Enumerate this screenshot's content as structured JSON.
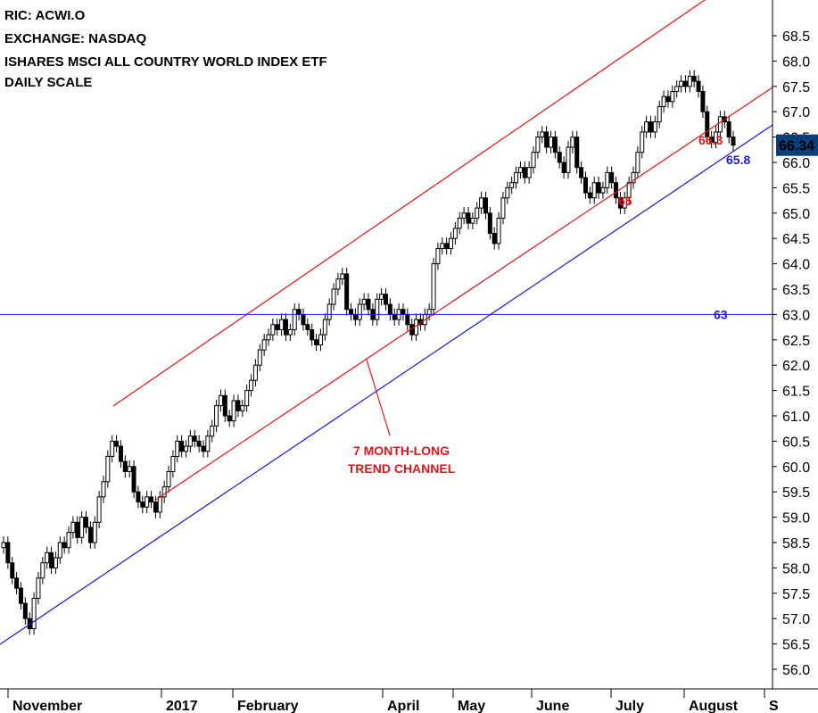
{
  "header": {
    "line1": "RIC: ACWI.O",
    "line2": "EXCHANGE: NASDAQ",
    "line3": "ISHARES MSCI ALL COUNTRY WORLD INDEX ETF",
    "line4": "DAILY SCALE"
  },
  "colors": {
    "channel": "#e3141b",
    "support": "#1a1ad6",
    "price_box": "#0b3f7a",
    "candle": "#000000"
  },
  "chart_data": {
    "type": "candlestick",
    "yaxis": {
      "ticks": [
        "56.0",
        "56.5",
        "57.0",
        "57.5",
        "58.0",
        "58.5",
        "59.0",
        "59.5",
        "60.0",
        "60.5",
        "61.0",
        "61.5",
        "62.0",
        "62.5",
        "63.0",
        "63.5",
        "64.0",
        "64.5",
        "65.0",
        "65.5",
        "66.0",
        "66.5",
        "67.0",
        "67.5",
        "68.0",
        "68.5"
      ],
      "range": [
        55.7,
        68.9
      ]
    },
    "xaxis": {
      "labels": [
        "November",
        "2017",
        "February",
        "April",
        "May",
        "June",
        "July",
        "August",
        "S"
      ]
    },
    "last_price": "66.34",
    "annotations": {
      "horizontal_level": "63",
      "channel_low_1": "65",
      "channel_low_2": "66.3",
      "support_level": "65.8",
      "note_line1": "7 MONTH-LONG",
      "note_line2": "TREND CHANNEL"
    },
    "closes": [
      58.5,
      58.1,
      57.8,
      57.6,
      57.3,
      57.0,
      56.8,
      57.4,
      57.8,
      58.1,
      58.3,
      58.0,
      58.2,
      58.5,
      58.4,
      58.7,
      58.9,
      58.6,
      59.0,
      58.8,
      58.5,
      58.9,
      59.4,
      59.7,
      60.2,
      60.5,
      60.4,
      60.1,
      59.9,
      60.0,
      59.5,
      59.3,
      59.2,
      59.4,
      59.3,
      59.1,
      59.4,
      59.6,
      59.9,
      60.2,
      60.5,
      60.3,
      60.4,
      60.6,
      60.5,
      60.4,
      60.3,
      60.6,
      60.8,
      61.2,
      61.4,
      61.0,
      60.9,
      61.3,
      61.1,
      61.2,
      61.5,
      61.7,
      62.0,
      62.3,
      62.5,
      62.6,
      62.8,
      62.7,
      62.9,
      62.6,
      62.7,
      63.1,
      63.0,
      62.8,
      62.7,
      62.5,
      62.4,
      62.6,
      62.9,
      63.2,
      63.5,
      63.7,
      63.8,
      63.1,
      63.0,
      62.9,
      63.2,
      63.3,
      63.1,
      62.9,
      63.3,
      63.4,
      63.2,
      63.0,
      62.9,
      63.1,
      63.0,
      62.8,
      62.6,
      62.9,
      62.8,
      63.0,
      63.1,
      64.0,
      64.3,
      64.4,
      64.3,
      64.5,
      64.7,
      64.9,
      65.0,
      64.8,
      64.9,
      65.1,
      65.3,
      65.0,
      64.6,
      64.4,
      64.9,
      65.3,
      65.5,
      65.6,
      65.8,
      65.9,
      65.7,
      65.9,
      66.2,
      66.5,
      66.6,
      66.3,
      66.5,
      66.2,
      66.0,
      65.8,
      66.3,
      66.5,
      65.9,
      65.7,
      65.4,
      65.3,
      65.6,
      65.4,
      65.5,
      65.8,
      65.6,
      65.3,
      65.1,
      65.3,
      65.6,
      65.8,
      66.2,
      66.6,
      66.8,
      66.6,
      66.8,
      67.1,
      67.3,
      67.2,
      67.4,
      67.5,
      67.6,
      67.5,
      67.7,
      67.6,
      67.4,
      67.0,
      66.5,
      66.4,
      66.6,
      66.9,
      66.8,
      66.5,
      66.34
    ]
  }
}
